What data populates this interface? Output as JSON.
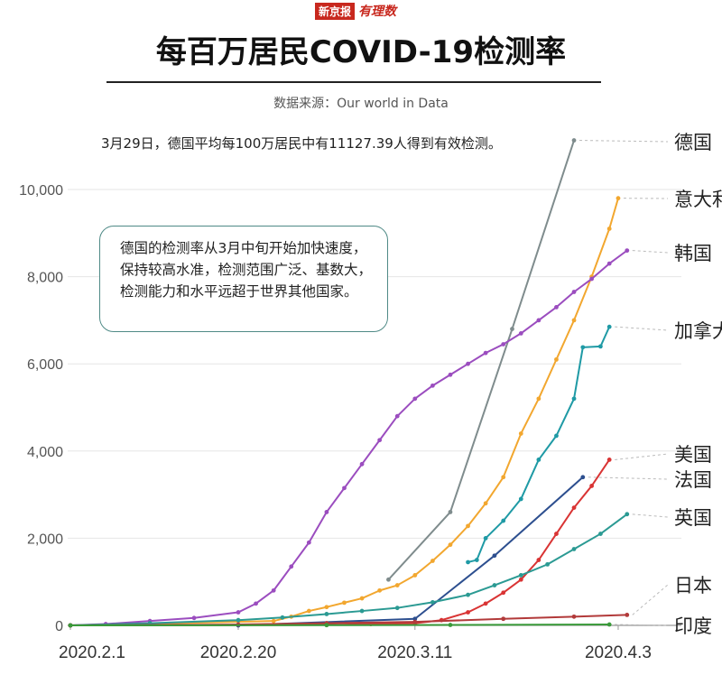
{
  "brand": {
    "paper": "新京报",
    "column": "有理数"
  },
  "title": "每百万居民COVID-19检测率",
  "source": "数据来源：Our world in Data",
  "annotation": "3月29日，德国平均每100万居民中有11127.39人得到有效检测。",
  "callout": "德国的检测率从3月中旬开始加快速度，保持较高水准，检测范围广泛、基数大，检测能力和水平远超于世界其他国家。",
  "colors": {
    "germany": "#7f8c8d",
    "italy": "#f2a72f",
    "korea": "#9b4dbf",
    "canada": "#1f9aa5",
    "usa": "#d93434",
    "france": "#2d4f8f",
    "uk": "#2b9a93",
    "japan": "#b23a3a",
    "india": "#3a9a3a",
    "grid": "#e6e6e6",
    "axis": "#888888"
  },
  "chart_data": {
    "type": "line",
    "title": "每百万居民COVID-19检测率",
    "xlabel": "",
    "ylabel": "",
    "x_ticks": [
      "2020.2.1",
      "2020.2.20",
      "2020.3.11",
      "2020.4.3"
    ],
    "y_ticks": [
      "0",
      "2,000",
      "4,000",
      "6,000",
      "8,000",
      "10,000"
    ],
    "ylim": [
      0,
      11500
    ],
    "x_range_days": "2020.2.1 – 2020.4.4",
    "grid": "horizontal",
    "series": [
      {
        "name": "德国",
        "color_key": "germany",
        "points": [
          [
            "2020.3.8",
            1050
          ],
          [
            "2020.3.15",
            2600
          ],
          [
            "2020.3.22",
            6800
          ],
          [
            "2020.3.29",
            11127.39
          ]
        ]
      },
      {
        "name": "意大利",
        "color_key": "italy",
        "points": [
          [
            "2020.2.1",
            0
          ],
          [
            "2020.2.24",
            100
          ],
          [
            "2020.2.26",
            200
          ],
          [
            "2020.2.28",
            330
          ],
          [
            "2020.3.1",
            420
          ],
          [
            "2020.3.3",
            520
          ],
          [
            "2020.3.5",
            620
          ],
          [
            "2020.3.7",
            800
          ],
          [
            "2020.3.9",
            920
          ],
          [
            "2020.3.11",
            1150
          ],
          [
            "2020.3.13",
            1480
          ],
          [
            "2020.3.15",
            1850
          ],
          [
            "2020.3.17",
            2280
          ],
          [
            "2020.3.19",
            2800
          ],
          [
            "2020.3.21",
            3400
          ],
          [
            "2020.3.23",
            4400
          ],
          [
            "2020.3.25",
            5200
          ],
          [
            "2020.3.27",
            6100
          ],
          [
            "2020.3.29",
            7000
          ],
          [
            "2020.3.31",
            8000
          ],
          [
            "2020.4.2",
            9100
          ],
          [
            "2020.4.3",
            9800
          ]
        ]
      },
      {
        "name": "韩国",
        "color_key": "korea",
        "points": [
          [
            "2020.2.1",
            0
          ],
          [
            "2020.2.5",
            30
          ],
          [
            "2020.2.10",
            100
          ],
          [
            "2020.2.15",
            170
          ],
          [
            "2020.2.20",
            300
          ],
          [
            "2020.2.22",
            500
          ],
          [
            "2020.2.24",
            800
          ],
          [
            "2020.2.26",
            1350
          ],
          [
            "2020.2.28",
            1900
          ],
          [
            "2020.3.1",
            2600
          ],
          [
            "2020.3.3",
            3150
          ],
          [
            "2020.3.5",
            3700
          ],
          [
            "2020.3.7",
            4250
          ],
          [
            "2020.3.9",
            4800
          ],
          [
            "2020.3.11",
            5200
          ],
          [
            "2020.3.13",
            5500
          ],
          [
            "2020.3.15",
            5750
          ],
          [
            "2020.3.17",
            6000
          ],
          [
            "2020.3.19",
            6250
          ],
          [
            "2020.3.21",
            6450
          ],
          [
            "2020.3.23",
            6700
          ],
          [
            "2020.3.25",
            7000
          ],
          [
            "2020.3.27",
            7300
          ],
          [
            "2020.3.29",
            7650
          ],
          [
            "2020.3.31",
            7950
          ],
          [
            "2020.4.2",
            8300
          ],
          [
            "2020.4.4",
            8600
          ]
        ]
      },
      {
        "name": "加拿大",
        "color_key": "canada",
        "points": [
          [
            "2020.3.17",
            1450
          ],
          [
            "2020.3.18",
            1500
          ],
          [
            "2020.3.19",
            2000
          ],
          [
            "2020.3.21",
            2400
          ],
          [
            "2020.3.23",
            2900
          ],
          [
            "2020.3.25",
            3800
          ],
          [
            "2020.3.27",
            4350
          ],
          [
            "2020.3.29",
            5200
          ],
          [
            "2020.3.30",
            6380
          ],
          [
            "2020.4.1",
            6400
          ],
          [
            "2020.4.2",
            6850
          ]
        ]
      },
      {
        "name": "美国",
        "color_key": "usa",
        "points": [
          [
            "2020.2.1",
            0
          ],
          [
            "2020.3.1",
            10
          ],
          [
            "2020.3.6",
            30
          ],
          [
            "2020.3.11",
            50
          ],
          [
            "2020.3.14",
            120
          ],
          [
            "2020.3.17",
            300
          ],
          [
            "2020.3.19",
            500
          ],
          [
            "2020.3.21",
            750
          ],
          [
            "2020.3.23",
            1050
          ],
          [
            "2020.3.25",
            1500
          ],
          [
            "2020.3.27",
            2100
          ],
          [
            "2020.3.29",
            2700
          ],
          [
            "2020.3.31",
            3200
          ],
          [
            "2020.4.2",
            3800
          ]
        ]
      },
      {
        "name": "法国",
        "color_key": "france",
        "points": [
          [
            "2020.2.20",
            0
          ],
          [
            "2020.3.11",
            150
          ],
          [
            "2020.3.20",
            1600
          ],
          [
            "2020.3.30",
            3400
          ]
        ]
      },
      {
        "name": "英国",
        "color_key": "uk",
        "points": [
          [
            "2020.2.1",
            0
          ],
          [
            "2020.2.10",
            50
          ],
          [
            "2020.2.20",
            120
          ],
          [
            "2020.2.25",
            180
          ],
          [
            "2020.3.1",
            260
          ],
          [
            "2020.3.5",
            330
          ],
          [
            "2020.3.9",
            400
          ],
          [
            "2020.3.13",
            530
          ],
          [
            "2020.3.17",
            700
          ],
          [
            "2020.3.20",
            920
          ],
          [
            "2020.3.23",
            1150
          ],
          [
            "2020.3.26",
            1400
          ],
          [
            "2020.3.29",
            1750
          ],
          [
            "2020.4.1",
            2100
          ],
          [
            "2020.4.4",
            2550
          ]
        ]
      },
      {
        "name": "日本",
        "color_key": "japan",
        "points": [
          [
            "2020.2.1",
            0
          ],
          [
            "2020.2.20",
            20
          ],
          [
            "2020.3.1",
            50
          ],
          [
            "2020.3.11",
            80
          ],
          [
            "2020.3.21",
            150
          ],
          [
            "2020.3.29",
            200
          ],
          [
            "2020.4.4",
            240
          ]
        ]
      },
      {
        "name": "印度",
        "color_key": "india",
        "points": [
          [
            "2020.2.1",
            0
          ],
          [
            "2020.3.1",
            5
          ],
          [
            "2020.3.15",
            10
          ],
          [
            "2020.4.2",
            20
          ]
        ]
      }
    ]
  }
}
